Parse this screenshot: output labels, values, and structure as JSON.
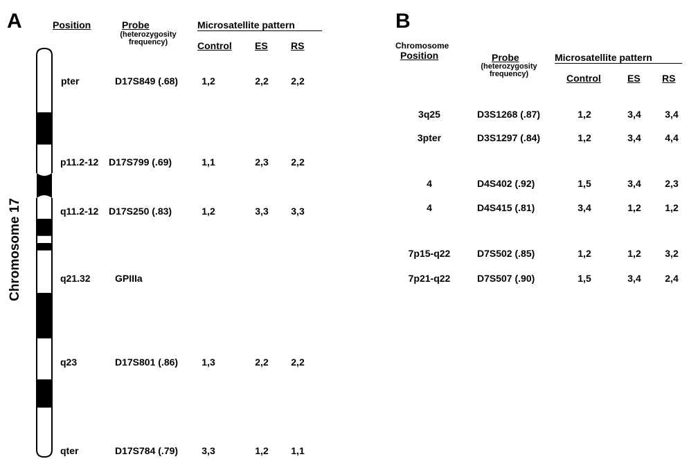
{
  "panel_a": {
    "letter": "A",
    "chromosome_label": "Chromosome 17",
    "headers": {
      "position": "Position",
      "probe": "Probe",
      "probe_sub1": "(heterozygosity",
      "probe_sub2": "frequency)",
      "pattern": "Microsatellite pattern",
      "control": "Control",
      "es": "ES",
      "rs": "RS"
    },
    "rows": [
      {
        "position": "pter",
        "probe": "D17S849 (.68)",
        "control": "1,2",
        "es": "2,2",
        "rs": "2,2"
      },
      {
        "position": "p11.2-12",
        "probe": "D17S799 (.69)",
        "control": "1,1",
        "es": "2,3",
        "rs": "2,2"
      },
      {
        "position": "q11.2-12",
        "probe": "D17S250 (.83)",
        "control": "1,2",
        "es": "3,3",
        "rs": "3,3"
      },
      {
        "position": "q21.32",
        "probe": "GPIIIa",
        "control": "",
        "es": "",
        "rs": ""
      },
      {
        "position": "q23",
        "probe": "D17S801 (.86)",
        "control": "1,3",
        "es": "2,2",
        "rs": "2,2"
      },
      {
        "position": "qter",
        "probe": "D17S784 (.79)",
        "control": "3,3",
        "es": "1,2",
        "rs": "1,1"
      }
    ]
  },
  "panel_b": {
    "letter": "B",
    "headers": {
      "chromosome": "Chromosome",
      "position": "Position",
      "probe": "Probe",
      "probe_sub1": "(heterozygosity",
      "probe_sub2": "frequency)",
      "pattern": "Microsatellite pattern",
      "control": "Control",
      "es": "ES",
      "rs": "RS"
    },
    "rows": [
      {
        "position": "3q25",
        "probe": "D3S1268 (.87)",
        "control": "1,2",
        "es": "3,4",
        "rs": "3,4"
      },
      {
        "position": "3pter",
        "probe": "D3S1297 (.84)",
        "control": "1,2",
        "es": "3,4",
        "rs": "4,4"
      },
      {
        "position": "4",
        "probe": "D4S402 (.92)",
        "control": "1,5",
        "es": "3,4",
        "rs": "2,3"
      },
      {
        "position": "4",
        "probe": "D4S415 (.81)",
        "control": "3,4",
        "es": "1,2",
        "rs": "1,2"
      },
      {
        "position": "7p15-q22",
        "probe": "D7S502 (.85)",
        "control": "1,2",
        "es": "1,2",
        "rs": "3,2"
      },
      {
        "position": "7p21-q22",
        "probe": "D7S507 (.90)",
        "control": "1,5",
        "es": "3,4",
        "rs": "2,4"
      }
    ]
  }
}
